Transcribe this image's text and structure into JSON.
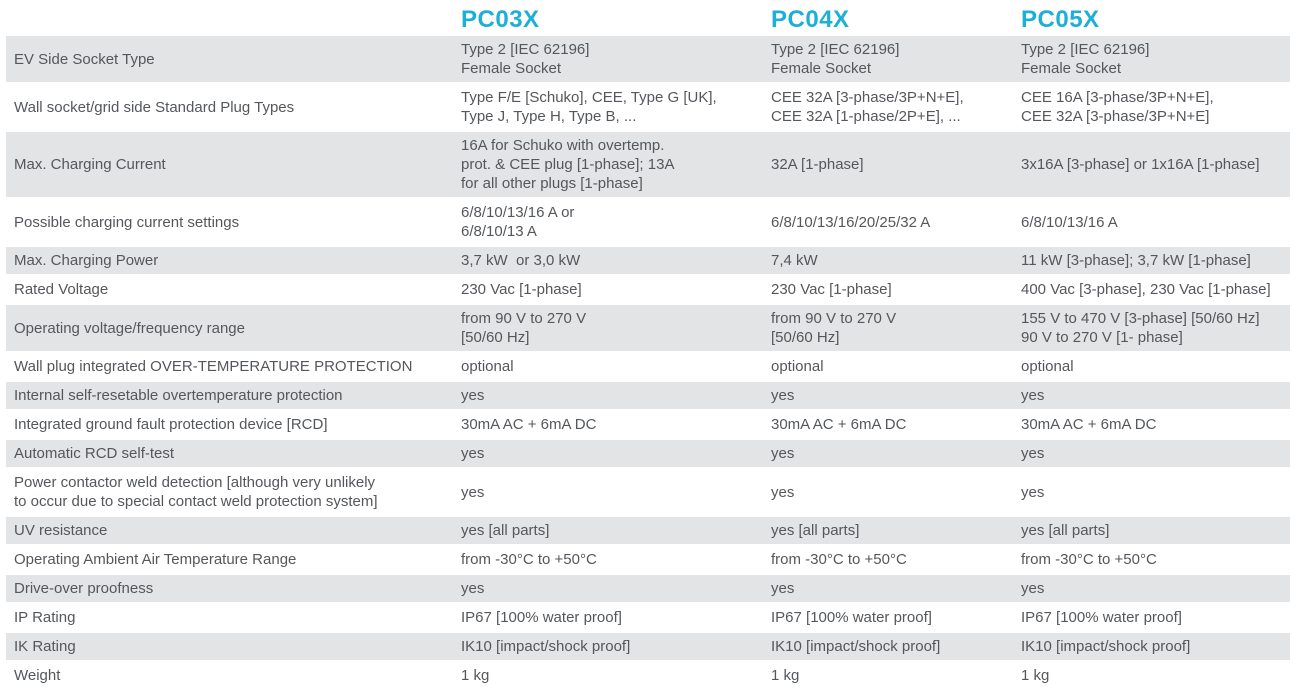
{
  "colors": {
    "accent": "#1cafd8",
    "shaded_row": "#e2e4e5",
    "text": "#54575b"
  },
  "header": {
    "products": [
      "PC03X",
      "PC04X",
      "PC05X"
    ]
  },
  "spec_table": {
    "rows": [
      {
        "label": "EV Side Socket Type",
        "values": [
          "Type 2 [IEC 62196]\nFemale Socket",
          "Type 2 [IEC 62196]\nFemale Socket",
          "Type 2 [IEC 62196]\nFemale Socket"
        ]
      },
      {
        "label": "Wall socket/grid side Standard Plug Types",
        "values": [
          "Type F/E [Schuko], CEE, Type G [UK],\nType J, Type H, Type B, ...",
          "CEE 32A [3-phase/3P+N+E],\nCEE 32A [1-phase/2P+E], ...",
          "CEE 16A [3-phase/3P+N+E],\nCEE 32A [3-phase/3P+N+E]"
        ]
      },
      {
        "label": "Max. Charging Current",
        "values": [
          "16A for Schuko with overtemp.\nprot. & CEE plug [1-phase]; 13A\nfor all other plugs [1-phase]",
          "32A [1-phase]",
          "3x16A [3-phase] or 1x16A [1-phase]"
        ]
      },
      {
        "label": "Possible charging current settings",
        "values": [
          "6/8/10/13/16 A or\n6/8/10/13 A",
          "6/8/10/13/16/20/25/32 A",
          "6/8/10/13/16 A"
        ]
      },
      {
        "label": "Max. Charging Power",
        "values": [
          "3,7 kW  or 3,0 kW",
          "7,4 kW",
          "11 kW [3-phase]; 3,7 kW [1-phase]"
        ]
      },
      {
        "label": "Rated Voltage",
        "values": [
          "230 Vac [1-phase]",
          "230 Vac [1-phase]",
          "400 Vac [3-phase], 230 Vac [1-phase]"
        ]
      },
      {
        "label": "Operating voltage/frequency range",
        "values": [
          "from 90 V to 270 V\n[50/60 Hz]",
          "from 90 V to 270 V\n[50/60 Hz]",
          "155 V to 470 V [3-phase] [50/60 Hz]\n90 V to 270 V [1- phase]"
        ]
      },
      {
        "label": "Wall plug integrated OVER-TEMPERATURE PROTECTION",
        "values": [
          "optional",
          "optional",
          "optional"
        ]
      },
      {
        "label": "Internal self-resetable overtemperature protection",
        "values": [
          "yes",
          "yes",
          "yes"
        ]
      },
      {
        "label": "Integrated ground fault protection  device [RCD]",
        "values": [
          "30mA AC + 6mA DC",
          "30mA AC + 6mA DC",
          "30mA AC + 6mA DC"
        ]
      },
      {
        "label": "Automatic RCD self-test",
        "values": [
          "yes",
          "yes",
          "yes"
        ]
      },
      {
        "label": "Power contactor weld detection [although very unlikely\nto occur due to special contact weld protection system]",
        "values": [
          "yes",
          "yes",
          "yes"
        ]
      },
      {
        "label": "UV resistance",
        "values": [
          "yes [all parts]",
          "yes [all parts]",
          "yes [all parts]"
        ]
      },
      {
        "label": "Operating Ambient Air Temperature Range",
        "values": [
          "from -30°C to +50°C",
          "from -30°C to +50°C",
          "from -30°C to +50°C"
        ]
      },
      {
        "label": "Drive-over proofness",
        "values": [
          "yes",
          "yes",
          "yes"
        ]
      },
      {
        "label": "IP Rating",
        "values": [
          "IP67 [100% water proof]",
          "IP67 [100% water proof]",
          "IP67 [100% water proof]"
        ]
      },
      {
        "label": "IK Rating",
        "values": [
          "IK10 [impact/shock proof]",
          "IK10 [impact/shock proof]",
          "IK10 [impact/shock proof]"
        ]
      },
      {
        "label": "Weight",
        "values": [
          "1 kg",
          "1 kg",
          "1 kg"
        ]
      }
    ]
  }
}
